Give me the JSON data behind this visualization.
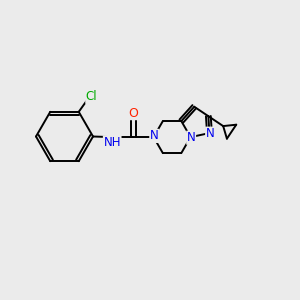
{
  "background_color": "#ebebeb",
  "bond_color": "#000000",
  "atom_colors": {
    "Cl": "#00aa00",
    "O": "#ff2200",
    "N": "#0000ee",
    "C": "#000000"
  },
  "figsize": [
    3.0,
    3.0
  ],
  "dpi": 100,
  "bond_lw": 1.4,
  "font_size": 8.5
}
